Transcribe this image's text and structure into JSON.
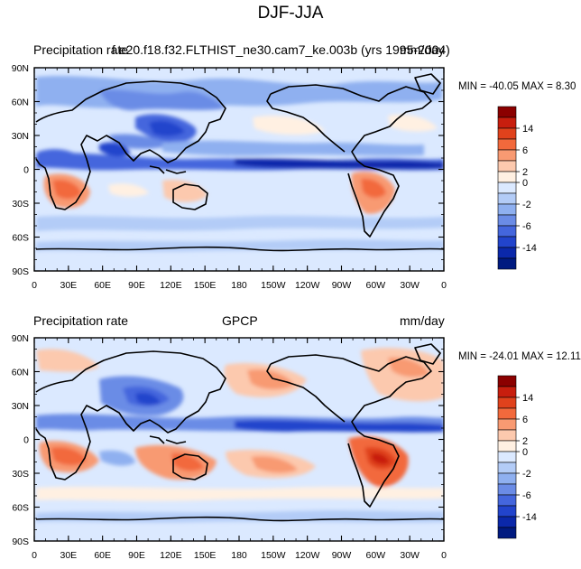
{
  "figure": {
    "title": "DJF-JJA",
    "colors": {
      "frame": "#000000",
      "coast": "#000000",
      "zero_band": "#dbe9ff"
    }
  },
  "colorbar": {
    "levels": [
      "14",
      "6",
      "2",
      "0",
      "-2",
      "-6",
      "-14"
    ],
    "colors": [
      "#8b0000",
      "#c81e0e",
      "#e0421c",
      "#f2693c",
      "#f89a72",
      "#fcc9ae",
      "#fff0e2",
      "#dbe9ff",
      "#b3ccf7",
      "#8fb0f0",
      "#6b8ce6",
      "#4466dd",
      "#2244cc",
      "#0b28aa",
      "#001a80"
    ]
  },
  "panels": [
    {
      "left_label": "Precipitation rate",
      "center_label": "f.e20.f18.f32.FLTHIST_ne30.cam7_ke.003b (yrs 1995-2004)",
      "right_label": "mm/day",
      "min_max": "MIN = -40.05 MAX =  8.30",
      "lat_ticks": [
        "90N",
        "60N",
        "30N",
        "0",
        "30S",
        "60S",
        "90S"
      ],
      "lon_ticks": [
        "0",
        "30E",
        "60E",
        "90E",
        "120E",
        "150E",
        "180",
        "150W",
        "120W",
        "90W",
        "60W",
        "30W",
        "0"
      ]
    },
    {
      "left_label": "Precipitation rate",
      "center_label": "GPCP",
      "right_label": "mm/day",
      "min_max": "MIN = -24.01 MAX =  12.11",
      "lat_ticks": [
        "90N",
        "60N",
        "30N",
        "0",
        "30S",
        "60S",
        "90S"
      ],
      "lon_ticks": [
        "0",
        "30E",
        "60E",
        "90E",
        "120E",
        "150E",
        "180",
        "150W",
        "120W",
        "90W",
        "60W",
        "30W",
        "0"
      ]
    }
  ]
}
